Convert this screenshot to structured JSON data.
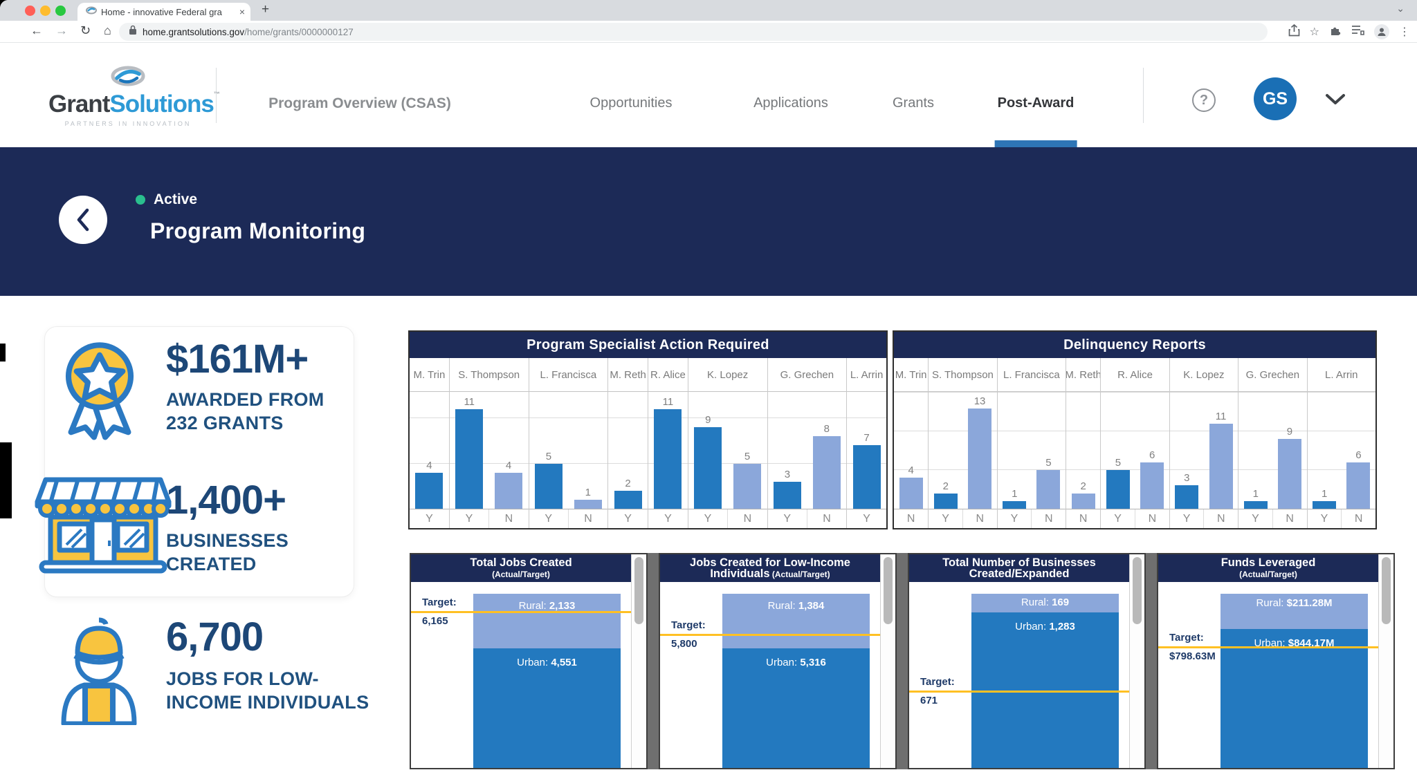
{
  "browser": {
    "tab_title": "Home - innovative Federal gra",
    "url_domain": "home.grantsolutions.gov",
    "url_path": "/home/grants/0000000127"
  },
  "icons": {
    "close_tab": "×",
    "new_tab": "+",
    "tab_chevron": "⌄",
    "back": "←",
    "forward": "→",
    "reload": "↻",
    "home": "⌂",
    "bookmark_star": "☆",
    "overflow_dots": "⋮",
    "help": "?"
  },
  "header": {
    "logo_part1": "Grant",
    "logo_part2": "Solutions",
    "logo_tm": "™",
    "tagline": "PARTNERS IN INNOVATION",
    "nav": [
      {
        "label": "Program Overview (CSAS)",
        "style": "semibold"
      },
      {
        "label": "Opportunities",
        "style": "regular"
      },
      {
        "label": "Applications",
        "style": "regular"
      },
      {
        "label": "Grants",
        "style": "regular"
      },
      {
        "label": "Post-Award",
        "style": "active"
      }
    ],
    "avatar_initials": "GS"
  },
  "banner": {
    "status": "Active",
    "title": "Program Monitoring"
  },
  "stats": [
    {
      "icon": "award-ribbon-icon",
      "value": "$161M+",
      "label_line1": "AWARDED FROM",
      "label_line2": "232 GRANTS"
    },
    {
      "icon": "storefront-icon",
      "value": "1,400+",
      "label_line1": "BUSINESSES",
      "label_line2": "CREATED"
    },
    {
      "icon": "worker-icon",
      "value": "6,700",
      "label_line1": "JOBS FOR LOW-",
      "label_line2": "INCOME INDIVIDUALS"
    }
  ],
  "colors": {
    "navy": "#1c2a57",
    "bar_dark": "#2379bf",
    "bar_light": "#8ba7da",
    "target_line": "#ffc023",
    "icon_blue": "#2b79c2",
    "icon_yellow": "#f8c43f",
    "active_green": "#2abf8e",
    "accent_blue": "#2e75b6",
    "avatar_blue": "#1a6fb5"
  },
  "chart_data": [
    {
      "type": "bar",
      "title": "Program Specialist Action Required",
      "ylim": [
        0,
        13
      ],
      "gridlines": [
        5,
        10
      ],
      "groups": [
        {
          "name": "M. Trin",
          "bars": [
            {
              "value": 4,
              "flag": "Y",
              "shade": "dark"
            }
          ]
        },
        {
          "name": "S. Thompson",
          "bars": [
            {
              "value": 11,
              "flag": "Y",
              "shade": "dark"
            },
            {
              "value": 4,
              "flag": "N",
              "shade": "light"
            }
          ]
        },
        {
          "name": "L. Francisca",
          "bars": [
            {
              "value": 5,
              "flag": "Y",
              "shade": "dark"
            },
            {
              "value": 1,
              "flag": "N",
              "shade": "light"
            }
          ]
        },
        {
          "name": "M. Reth",
          "bars": [
            {
              "value": 2,
              "flag": "Y",
              "shade": "dark"
            }
          ]
        },
        {
          "name": "R. Alice",
          "bars": [
            {
              "value": 11,
              "flag": "Y",
              "shade": "dark"
            }
          ]
        },
        {
          "name": "K. Lopez",
          "bars": [
            {
              "value": 9,
              "flag": "Y",
              "shade": "dark"
            },
            {
              "value": 5,
              "flag": "N",
              "shade": "light"
            }
          ]
        },
        {
          "name": "G. Grechen",
          "bars": [
            {
              "value": 3,
              "flag": "Y",
              "shade": "dark"
            },
            {
              "value": 8,
              "flag": "N",
              "shade": "light"
            }
          ]
        },
        {
          "name": "L. Arrin",
          "bars": [
            {
              "value": 7,
              "flag": "Y",
              "shade": "dark"
            }
          ]
        }
      ]
    },
    {
      "type": "bar",
      "title": "Delinquency Reports",
      "ylim": [
        0,
        15.2
      ],
      "gridlines": [
        5,
        10,
        15
      ],
      "groups": [
        {
          "name": "M. Trin",
          "bars": [
            {
              "value": 4,
              "flag": "N",
              "shade": "light"
            }
          ]
        },
        {
          "name": "S. Thompson",
          "bars": [
            {
              "value": 2,
              "flag": "Y",
              "shade": "dark"
            },
            {
              "value": 13,
              "flag": "N",
              "shade": "light"
            }
          ]
        },
        {
          "name": "L. Francisca",
          "bars": [
            {
              "value": 1,
              "flag": "Y",
              "shade": "dark"
            },
            {
              "value": 5,
              "flag": "N",
              "shade": "light"
            }
          ]
        },
        {
          "name": "M. Reth",
          "bars": [
            {
              "value": 2,
              "flag": "N",
              "shade": "light"
            }
          ]
        },
        {
          "name": "R. Alice",
          "bars": [
            {
              "value": 5,
              "flag": "Y",
              "shade": "dark"
            },
            {
              "value": 6,
              "flag": "N",
              "shade": "light"
            }
          ]
        },
        {
          "name": "K. Lopez",
          "bars": [
            {
              "value": 3,
              "flag": "Y",
              "shade": "dark"
            },
            {
              "value": 11,
              "flag": "N",
              "shade": "light"
            }
          ]
        },
        {
          "name": "G. Grechen",
          "bars": [
            {
              "value": 1,
              "flag": "Y",
              "shade": "dark"
            },
            {
              "value": 9,
              "flag": "N",
              "shade": "light"
            }
          ]
        },
        {
          "name": "L. Arrin",
          "bars": [
            {
              "value": 1,
              "flag": "Y",
              "shade": "dark"
            },
            {
              "value": 6,
              "flag": "N",
              "shade": "light"
            }
          ]
        }
      ]
    },
    {
      "type": "stacked-bar",
      "title": "Total Jobs Created",
      "title2": "",
      "subtitle": "(Actual/Target)",
      "segments": [
        {
          "label": "Rural",
          "display": "2,133",
          "shade": "light"
        },
        {
          "label": "Urban",
          "display": "4,551",
          "shade": "dark"
        }
      ],
      "target": {
        "label": "Target:",
        "display": "6,165"
      }
    },
    {
      "type": "stacked-bar",
      "title": "Jobs Created for Low-Income",
      "title2": "Individuals",
      "subtitle": "(Actual/Target)",
      "segments": [
        {
          "label": "Rural",
          "display": "1,384",
          "shade": "light"
        },
        {
          "label": "Urban",
          "display": "5,316",
          "shade": "dark"
        }
      ],
      "target": {
        "label": "Target:",
        "display": "5,800"
      }
    },
    {
      "type": "stacked-bar",
      "title": "Total Number of Businesses",
      "title2": "Created/Expanded",
      "subtitle": "",
      "segments": [
        {
          "label": "Rural",
          "display": "169",
          "shade": "light"
        },
        {
          "label": "Urban",
          "display": "1,283",
          "shade": "dark"
        }
      ],
      "target": {
        "label": "Target:",
        "display": "671"
      }
    },
    {
      "type": "stacked-bar",
      "title": "Funds Leveraged",
      "title2": "",
      "subtitle": "(Actual/Target)",
      "segments": [
        {
          "label": "Rural",
          "display": "$211.28M",
          "shade": "light"
        },
        {
          "label": "Urban",
          "display": "$844.17M",
          "shade": "dark"
        }
      ],
      "target": {
        "label": "Target:",
        "display": "$798.63M"
      }
    }
  ]
}
